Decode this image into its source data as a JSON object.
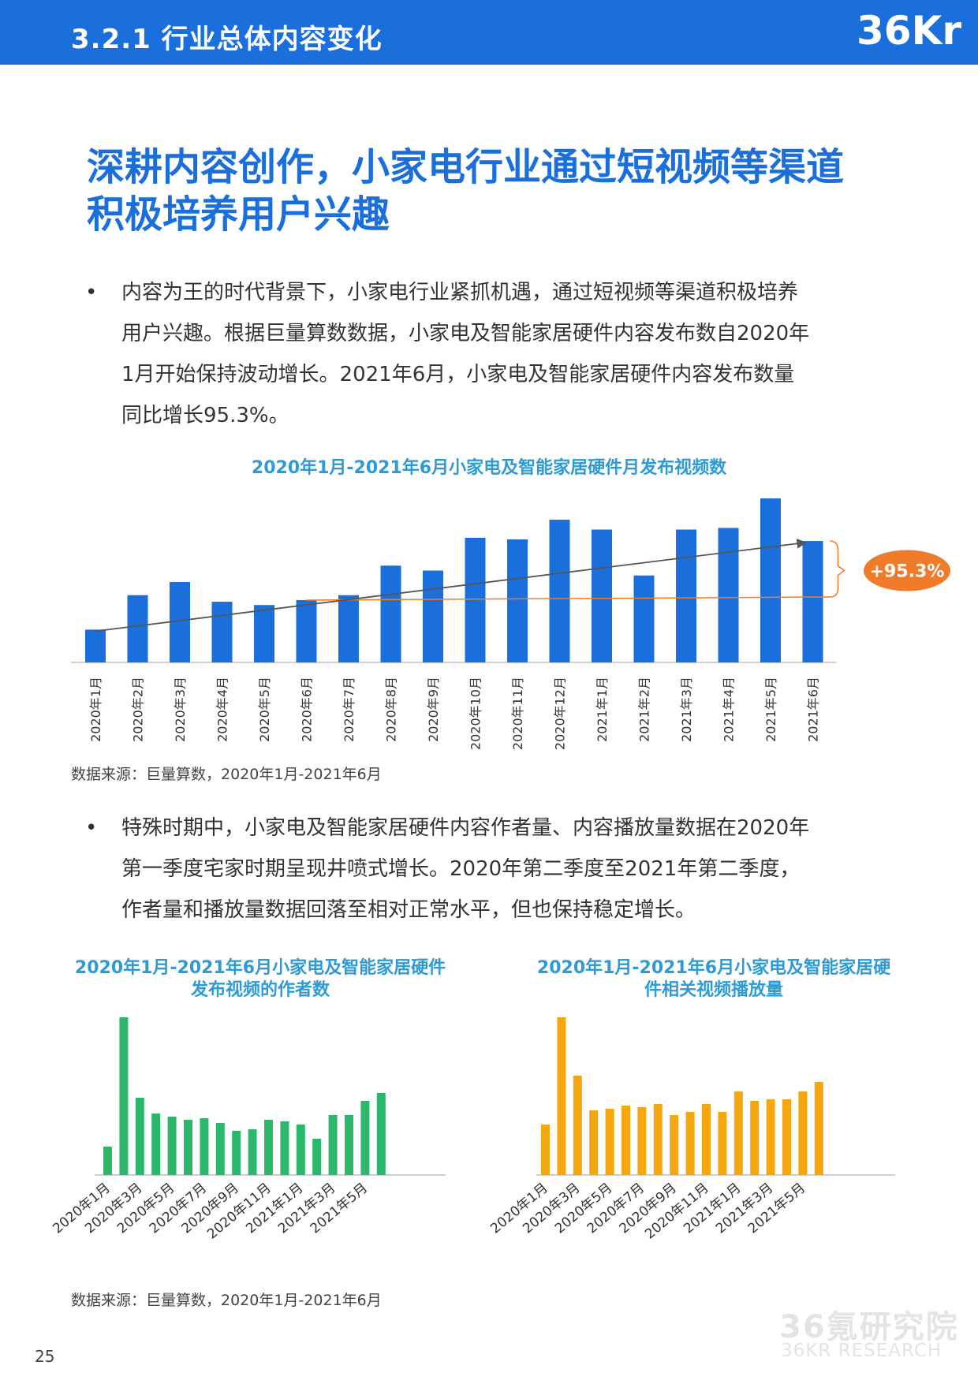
{
  "header": {
    "section_title": "3.2.1 行业总体内容变化",
    "logo_text": "36Kr",
    "bar_color": "#1a6fdc"
  },
  "headline": {
    "line1": "深耕内容创作，小家电行业通过短视频等渠道",
    "line2": "积极培养用户兴趣"
  },
  "paragraphs": [
    {
      "bullet": "•",
      "lines": [
        "内容为王的时代背景下，小家电行业紧抓机遇，通过短视频等渠道积极培养",
        "用户兴趣。根据巨量算数数据，小家电及智能家居硬件内容发布数自2020年",
        "1月开始保持波动增长。2021年6月，小家电及智能家居硬件内容发布数量",
        "同比增长95.3%。"
      ]
    },
    {
      "bullet": "•",
      "lines": [
        "特殊时期中，小家电及智能家居硬件内容作者量、内容播放量数据在2020年",
        "第一季度宅家时期呈现井喷式增长。2020年第二季度至2021年第二季度，",
        "作者量和播放量数据回落至相对正常水平，但也保持稳定增长。"
      ]
    }
  ],
  "source_1": "数据来源：巨量算数，2020年1月-2021年6月",
  "source_2": "数据来源：巨量算数，2020年1月-2021年6月",
  "page_number": "25",
  "watermark": {
    "cn": "36氪研究院",
    "en": "36KR RESEARCH"
  },
  "chart_data": [
    {
      "type": "bar",
      "title": "2020年1月-2021年6月小家电及智能家居硬件月发布视频数",
      "categories": [
        "2020年1月",
        "2020年2月",
        "2020年3月",
        "2020年4月",
        "2020年5月",
        "2020年6月",
        "2020年7月",
        "2020年8月",
        "2020年9月",
        "2020年10月",
        "2020年11月",
        "2020年12月",
        "2021年1月",
        "2021年2月",
        "2021年3月",
        "2021年4月",
        "2021年5月",
        "2021年6月"
      ],
      "values": [
        20,
        41,
        49,
        37,
        35,
        38,
        41,
        59,
        56,
        76,
        75,
        87,
        81,
        53,
        81,
        82,
        100,
        74
      ],
      "color": "#1a6fdc",
      "trend_color": "#555555",
      "comparison_color": "#f07b2a",
      "annotation": "+95.3%",
      "annotation_color": "#f07b2a",
      "grid": false,
      "legend": "none"
    },
    {
      "type": "bar",
      "title": "2020年1月-2021年6月小家电及智能家居硬件发布视频的作者数",
      "categories": [
        "2020年1月",
        "2020年2月",
        "2020年3月",
        "2020年4月",
        "2020年5月",
        "2020年6月",
        "2020年7月",
        "2020年8月",
        "2020年9月",
        "2020年10月",
        "2020年11月",
        "2020年12月",
        "2021年1月",
        "2021年2月",
        "2021年3月",
        "2021年4月",
        "2021年5月",
        "2021年6月"
      ],
      "tick_labels": [
        "2020年1月",
        "2020年3月",
        "2020年5月",
        "2020年7月",
        "2020年9月",
        "2020年11月",
        "2021年1月",
        "2021年3月",
        "2021年5月"
      ],
      "values": [
        18,
        100,
        49,
        39,
        37,
        35,
        36,
        33,
        28,
        29,
        35,
        34,
        32,
        23,
        38,
        38,
        47,
        52
      ],
      "color": "#2bb86a",
      "grid": false,
      "legend": "none"
    },
    {
      "type": "bar",
      "title": "2020年1月-2021年6月小家电及智能家居硬件相关视频播放量",
      "categories": [
        "2020年1月",
        "2020年2月",
        "2020年3月",
        "2020年4月",
        "2020年5月",
        "2020年6月",
        "2020年7月",
        "2020年8月",
        "2020年9月",
        "2020年10月",
        "2020年11月",
        "2020年12月",
        "2021年1月",
        "2021年2月",
        "2021年3月",
        "2021年4月",
        "2021年5月",
        "2021年6月"
      ],
      "tick_labels": [
        "2020年1月",
        "2020年3月",
        "2020年5月",
        "2020年7月",
        "2020年9月",
        "2020年11月",
        "2021年1月",
        "2021年3月",
        "2021年5月"
      ],
      "values": [
        32,
        100,
        63,
        41,
        42,
        44,
        43,
        45,
        38,
        40,
        45,
        40,
        53,
        47,
        48,
        48,
        53,
        59
      ],
      "color": "#f5a70f",
      "grid": false,
      "legend": "none"
    }
  ]
}
